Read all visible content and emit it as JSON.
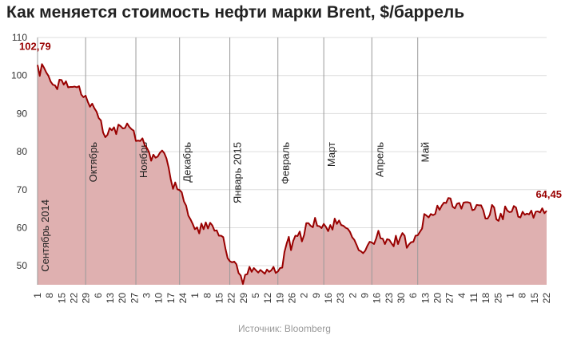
{
  "chart_data": {
    "type": "area",
    "title": "Как меняется стоимость нефти марки Brent, $/баррель",
    "source": "Источник: Bloomberg",
    "xlabel": "",
    "ylabel": "",
    "ylim": [
      45,
      110
    ],
    "y_ticks": [
      "50",
      "60",
      "70",
      "80",
      "90",
      "100",
      "110"
    ],
    "grid": "horizontal",
    "colors": {
      "line": "#990000",
      "fill": "#dfb0b0",
      "grid": "#dddddd",
      "month_line": "#999999",
      "label": "#990000"
    },
    "x_ticks": [
      "1",
      "8",
      "15",
      "22",
      "29",
      "6",
      "13",
      "20",
      "27",
      "3",
      "10",
      "17",
      "24",
      "1",
      "8",
      "15",
      "22",
      "29",
      "5",
      "12",
      "19",
      "26",
      "2",
      "9",
      "16",
      "23",
      "2",
      "9",
      "16",
      "23",
      "30",
      "6",
      "13",
      "20",
      "27",
      "4",
      "11",
      "18",
      "25",
      "1",
      "8",
      "15",
      "22"
    ],
    "months": [
      {
        "label": "Сентябрь 2014",
        "index": 0
      },
      {
        "label": "Октябрь",
        "index": 22
      },
      {
        "label": "Ноябрь",
        "index": 45
      },
      {
        "label": "Декабрь",
        "index": 65
      },
      {
        "label": "Январь 2015",
        "index": 88
      },
      {
        "label": "Февраль",
        "index": 110
      },
      {
        "label": "Март",
        "index": 131
      },
      {
        "label": "Апрель",
        "index": 153
      },
      {
        "label": "Май",
        "index": 174
      }
    ],
    "first_label": "102,79",
    "last_label": "64,45",
    "series": [
      {
        "values": [
          102.79,
          99.9,
          103.0,
          102.0,
          100.8,
          99.9,
          98.4,
          97.6,
          97.4,
          96.4,
          98.9,
          98.8,
          97.6,
          98.5,
          96.9,
          97.0,
          97.0,
          97.1,
          96.9,
          97.2,
          95.0,
          94.3,
          94.7,
          93.1,
          91.8,
          92.6,
          91.4,
          90.5,
          88.8,
          88.2,
          85.0,
          83.8,
          84.4,
          86.2,
          85.6,
          86.4,
          84.6,
          87.1,
          86.7,
          86.1,
          86.2,
          87.4,
          86.5,
          85.9,
          85.5,
          82.8,
          82.9,
          82.8,
          83.5,
          81.8,
          81.0,
          79.9,
          77.6,
          79.2,
          78.4,
          78.7,
          79.7,
          80.3,
          79.6,
          78.2,
          75.8,
          72.6,
          70.2,
          71.9,
          70.1,
          69.9,
          69.3,
          66.9,
          65.8,
          63.2,
          62.2,
          61.0,
          59.6,
          60.1,
          58.5,
          61.1,
          59.6,
          61.4,
          59.8,
          61.3,
          60.6,
          59.2,
          59.3,
          57.9,
          57.9,
          57.5,
          54.5,
          52.0,
          51.2,
          50.9,
          51.1,
          50.4,
          48.1,
          47.4,
          45.2,
          47.6,
          47.8,
          49.7,
          48.4,
          49.4,
          48.8,
          48.2,
          48.9,
          48.4,
          47.9,
          49.0,
          48.4,
          48.8,
          49.7,
          48.1,
          48.5,
          49.4,
          49.5,
          53.6,
          55.8,
          57.6,
          54.1,
          56.5,
          57.9,
          57.8,
          59.0,
          56.4,
          58.1,
          61.2,
          61.2,
          60.5,
          60.1,
          62.6,
          60.5,
          60.4,
          59.9,
          61.0,
          60.2,
          59.1,
          60.7,
          59.5,
          62.4,
          61.0,
          61.9,
          60.7,
          60.5,
          60.0,
          59.7,
          58.9,
          57.5,
          56.8,
          55.5,
          54.1,
          53.8,
          53.3,
          54.0,
          55.3,
          56.3,
          56.1,
          55.7,
          57.2,
          59.2,
          57.2,
          57.1,
          55.7,
          57.0,
          56.8,
          55.9,
          55.1,
          57.9,
          55.7,
          57.4,
          58.6,
          57.9,
          54.7,
          55.6,
          56.2,
          56.3,
          57.9,
          58.0,
          58.9,
          59.8,
          63.6,
          63.2,
          62.7,
          63.6,
          63.3,
          63.6,
          65.8,
          64.7,
          65.8,
          66.6,
          66.5,
          67.8,
          67.7,
          65.5,
          65.1,
          66.3,
          66.5,
          65.0,
          66.6,
          66.7,
          66.7,
          66.5,
          64.6,
          64.8,
          66.0,
          65.9,
          65.9,
          64.6,
          62.4,
          62.4,
          63.4,
          66.0,
          65.3,
          62.2,
          61.8,
          63.7,
          62.2,
          65.6,
          64.5,
          64.1,
          64.2,
          65.7,
          65.3,
          62.9,
          62.7,
          64.2,
          63.4,
          63.7,
          63.5,
          64.5,
          62.6,
          64.2,
          64.3,
          64.0,
          65.1,
          63.8,
          64.45
        ]
      }
    ]
  }
}
